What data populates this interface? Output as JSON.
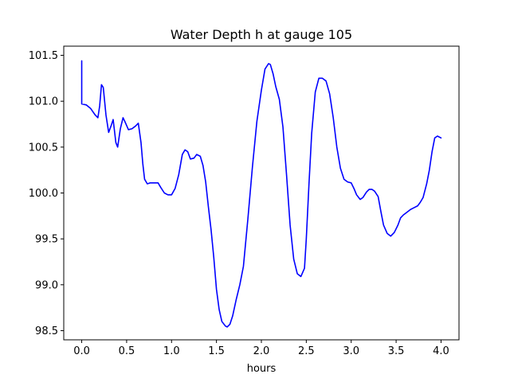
{
  "chart_data": {
    "type": "line",
    "title": "Water Depth h at gauge 105",
    "xlabel": "hours",
    "ylabel": "",
    "xlim": [
      -0.2,
      4.2
    ],
    "ylim": [
      98.4,
      101.6
    ],
    "xticks": [
      0.0,
      0.5,
      1.0,
      1.5,
      2.0,
      2.5,
      3.0,
      3.5,
      4.0
    ],
    "xtick_labels": [
      "0.0",
      "0.5",
      "1.0",
      "1.5",
      "2.0",
      "2.5",
      "3.0",
      "3.5",
      "4.0"
    ],
    "yticks": [
      98.5,
      99.0,
      99.5,
      100.0,
      100.5,
      101.0,
      101.5
    ],
    "ytick_labels": [
      "98.5",
      "99.0",
      "99.5",
      "100.0",
      "100.5",
      "101.0",
      "101.5"
    ],
    "grid": false,
    "series": [
      {
        "color": "#0000ff",
        "x": [
          0.0,
          0.0,
          0.0,
          0.05,
          0.1,
          0.15,
          0.18,
          0.2,
          0.22,
          0.24,
          0.27,
          0.3,
          0.33,
          0.35,
          0.38,
          0.4,
          0.43,
          0.46,
          0.48,
          0.52,
          0.56,
          0.6,
          0.63,
          0.66,
          0.68,
          0.7,
          0.73,
          0.76,
          0.8,
          0.85,
          0.88,
          0.92,
          0.96,
          1.0,
          1.04,
          1.08,
          1.12,
          1.15,
          1.18,
          1.21,
          1.25,
          1.28,
          1.32,
          1.35,
          1.38,
          1.41,
          1.44,
          1.47,
          1.5,
          1.53,
          1.56,
          1.6,
          1.62,
          1.65,
          1.68,
          1.72,
          1.76,
          1.8,
          1.85,
          1.9,
          1.95,
          2.0,
          2.04,
          2.08,
          2.1,
          2.13,
          2.16,
          2.2,
          2.24,
          2.28,
          2.32,
          2.36,
          2.4,
          2.44,
          2.48,
          2.5,
          2.53,
          2.56,
          2.6,
          2.64,
          2.68,
          2.72,
          2.76,
          2.8,
          2.84,
          2.88,
          2.92,
          2.96,
          3.0,
          3.03,
          3.06,
          3.1,
          3.13,
          3.17,
          3.2,
          3.23,
          3.26,
          3.3,
          3.33,
          3.36,
          3.4,
          3.44,
          3.48,
          3.52,
          3.55,
          3.58,
          3.62,
          3.66,
          3.7,
          3.74,
          3.77,
          3.8,
          3.84,
          3.87,
          3.9,
          3.93,
          3.96,
          4.0
        ],
        "y": [
          101.44,
          101.0,
          100.97,
          100.96,
          100.92,
          100.85,
          100.82,
          100.95,
          101.18,
          101.15,
          100.85,
          100.66,
          100.74,
          100.8,
          100.55,
          100.5,
          100.7,
          100.82,
          100.78,
          100.69,
          100.7,
          100.73,
          100.76,
          100.55,
          100.32,
          100.15,
          100.1,
          100.11,
          100.11,
          100.11,
          100.06,
          100.0,
          99.98,
          99.98,
          100.05,
          100.2,
          100.42,
          100.47,
          100.45,
          100.37,
          100.38,
          100.42,
          100.4,
          100.3,
          100.12,
          99.85,
          99.6,
          99.3,
          98.95,
          98.73,
          98.6,
          98.55,
          98.54,
          98.57,
          98.66,
          98.84,
          99.0,
          99.2,
          99.72,
          100.28,
          100.78,
          101.12,
          101.35,
          101.41,
          101.4,
          101.3,
          101.16,
          101.02,
          100.72,
          100.2,
          99.65,
          99.28,
          99.12,
          99.09,
          99.18,
          99.5,
          100.1,
          100.65,
          101.1,
          101.25,
          101.25,
          101.22,
          101.08,
          100.82,
          100.5,
          100.27,
          100.15,
          100.12,
          100.11,
          100.05,
          99.98,
          99.93,
          99.95,
          100.01,
          100.04,
          100.04,
          100.02,
          99.96,
          99.8,
          99.65,
          99.56,
          99.53,
          99.57,
          99.65,
          99.73,
          99.76,
          99.79,
          99.82,
          99.84,
          99.86,
          99.9,
          99.95,
          100.1,
          100.25,
          100.45,
          100.6,
          100.62,
          100.6
        ]
      }
    ]
  }
}
